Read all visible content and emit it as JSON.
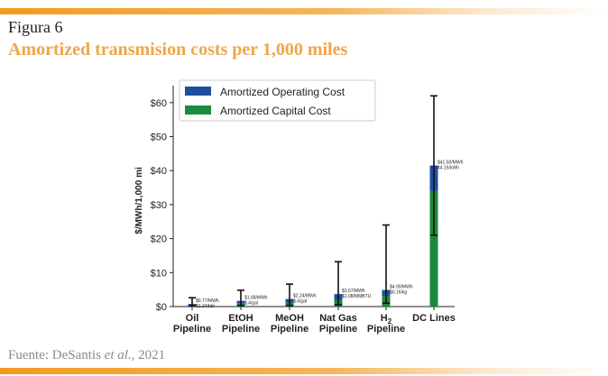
{
  "header": {
    "figure_label": "Figura 6",
    "title": "Amortized transmision costs per 1,000 miles"
  },
  "footer": {
    "source_prefix": "Fuente: DeSantis ",
    "source_italic": "et al.",
    "source_suffix": ", 2021"
  },
  "colors": {
    "accent": "#f39a1e",
    "title": "#f0a64a",
    "operating": "#1f4e9e",
    "capital": "#1b8a3a"
  },
  "chart_data": {
    "type": "bar",
    "stacked": true,
    "ylabel": "$/MWh/1,000 mi",
    "ylim": [
      0,
      65
    ],
    "yticks": [
      0,
      10,
      20,
      30,
      40,
      50,
      60
    ],
    "ytick_labels": [
      "$0",
      "$10",
      "$20",
      "$30",
      "$40",
      "$50",
      "$60"
    ],
    "categories": [
      [
        "Oil",
        "Pipeline"
      ],
      [
        "EtOH",
        "Pipeline"
      ],
      [
        "MeOH",
        "Pipeline"
      ],
      [
        "Nat Gas",
        "Pipeline"
      ],
      [
        "H2",
        "Pipeline"
      ],
      [
        "DC Lines"
      ]
    ],
    "legend": {
      "position": "top-left",
      "entries": [
        "Amortized Operating Cost",
        "Amortized Capital Cost"
      ]
    },
    "series": [
      {
        "name": "Amortized Capital Cost",
        "color": "#1b8a3a",
        "values": [
          0.4,
          1.0,
          1.2,
          2.0,
          3.0,
          34.0
        ]
      },
      {
        "name": "Amortized Operating Cost",
        "color": "#1f4e9e",
        "values": [
          0.37,
          0.68,
          1.04,
          1.67,
          1.9,
          7.5
        ]
      }
    ],
    "error_bars": [
      {
        "low": 0.2,
        "high": 2.6
      },
      {
        "low": 0.3,
        "high": 4.8
      },
      {
        "low": 0.3,
        "high": 6.6
      },
      {
        "low": 0.5,
        "high": 13.2
      },
      {
        "low": 1.0,
        "high": 24.0
      },
      {
        "low": 21.0,
        "high": 62.0
      }
    ],
    "annotations": [
      [
        "$0.77/MWh",
        "$1.24/bbl"
      ],
      [
        "$1.68/MWh",
        "$.4/gal"
      ],
      [
        "$2.24/MWh",
        "$.4/gal"
      ],
      [
        "$3.67/MWh",
        "$1.08/MMBTU"
      ],
      [
        "$4.90/MWh",
        "$0.16/kg"
      ],
      [
        "$41.50/MWh",
        "¢4.15/kWh"
      ]
    ]
  }
}
